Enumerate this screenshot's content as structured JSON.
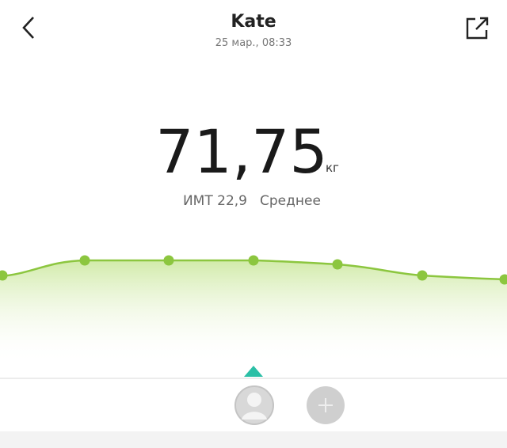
{
  "header": {
    "title": "Kate",
    "subtitle": "25 мар., 08:33"
  },
  "weight": {
    "value": "71,75",
    "unit": "кг"
  },
  "bmi": {
    "label": "ИМТ 22,9",
    "status": "Среднее"
  }
}
